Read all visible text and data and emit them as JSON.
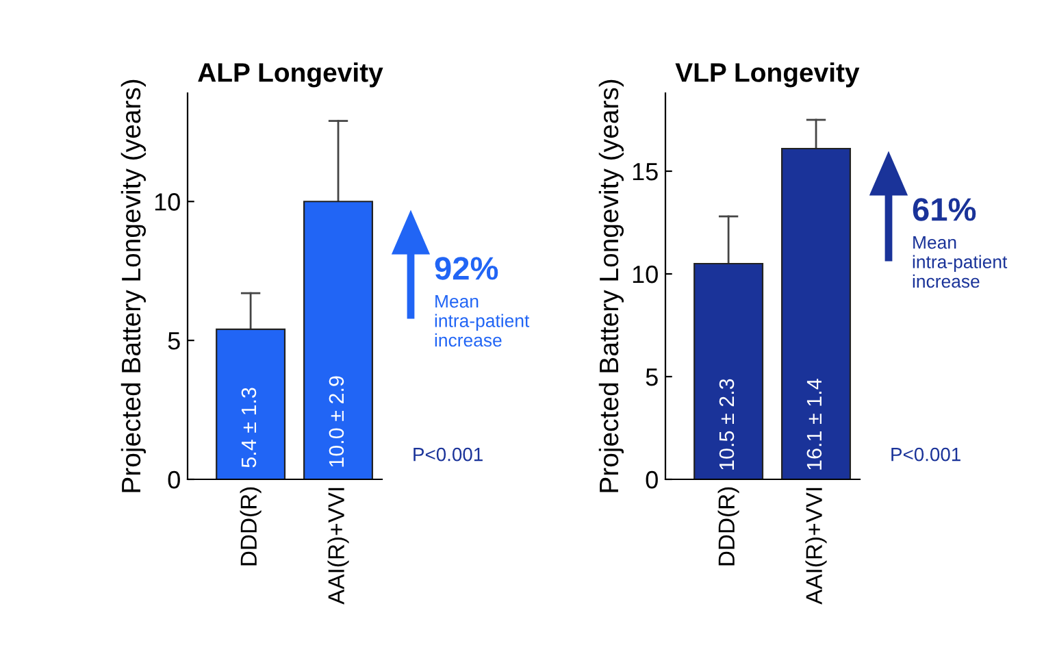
{
  "chart_data": [
    {
      "type": "bar",
      "title": "ALP Longevity",
      "ylabel": "Projected Battery Longevity (years)",
      "categories": [
        "DDD(R)",
        "AAI(R)+VVI"
      ],
      "series": [
        {
          "color": "#2165f5",
          "values": [
            5.4,
            10.0
          ],
          "errors": [
            [
              5.4,
              6.7
            ],
            [
              10.0,
              12.9
            ]
          ],
          "value_labels": [
            "5.4 ± 1.3",
            "10.0 ± 2.9"
          ]
        }
      ],
      "ylim": [
        0,
        13.9
      ],
      "yticks": [
        0,
        5,
        10
      ],
      "grid": false,
      "legend": false,
      "annotations": [
        "92%",
        "Mean\nintra-patient\nincrease",
        "P<0.001"
      ]
    },
    {
      "type": "bar",
      "title": "VLP Longevity",
      "ylabel": "Projected Battery Longevity (years)",
      "categories": [
        "DDD(R)",
        "AAI(R)+VVI"
      ],
      "series": [
        {
          "color": "#1a3399",
          "values": [
            10.5,
            16.1
          ],
          "errors": [
            [
              10.5,
              12.8
            ],
            [
              16.1,
              17.5
            ]
          ],
          "value_labels": [
            "10.5 ± 2.3",
            "16.1 ± 1.4"
          ]
        }
      ],
      "ylim": [
        0,
        18.8
      ],
      "yticks": [
        0,
        5,
        10,
        15
      ],
      "grid": false,
      "legend": false,
      "annotations": [
        "61%",
        "Mean\nintra-patient\nincrease",
        "P<0.001"
      ]
    }
  ]
}
